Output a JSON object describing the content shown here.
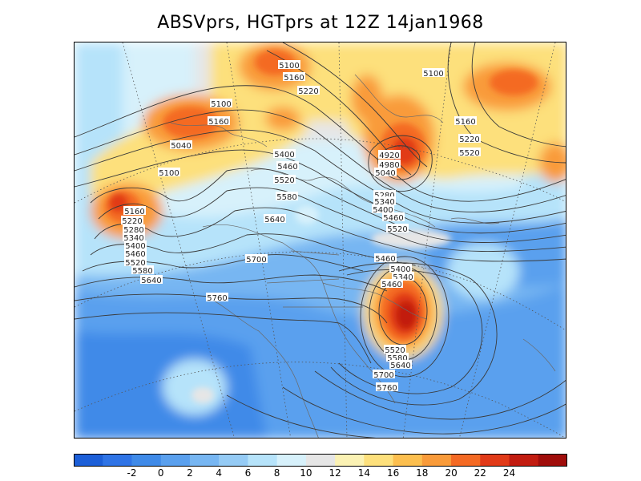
{
  "title": "ABSVprs, HGTprs at 12Z  14jan1968",
  "field": {
    "shaded_variable": "ABSVprs",
    "contour_variable": "HGTprs",
    "time": "12Z  14jan1968",
    "projection": "north polar stereographic (North America)"
  },
  "colorbar": {
    "colors": [
      "#1c5fd8",
      "#2f74e6",
      "#3f8ae8",
      "#5aa0ee",
      "#77b6f2",
      "#95cbf5",
      "#b6e3fa",
      "#d7f1fb",
      "#e6e6e6",
      "#fbf2b4",
      "#fde07c",
      "#fcbf4f",
      "#f99b3a",
      "#f46a24",
      "#e13a18",
      "#c21c10",
      "#a00d0b"
    ],
    "labels": [
      "-2",
      "0",
      "2",
      "4",
      "6",
      "8",
      "10",
      "12",
      "14",
      "16",
      "18",
      "20",
      "22",
      "24"
    ]
  },
  "contour_labels": [
    "5100",
    "5160",
    "5220",
    "5100",
    "5160",
    "5040",
    "5100",
    "5160",
    "5220",
    "5280",
    "5340",
    "5400",
    "5460",
    "5520",
    "5580",
    "5640",
    "5400",
    "5460",
    "5520",
    "5580",
    "5640",
    "5700",
    "5760",
    "4920",
    "4980",
    "5040",
    "5280",
    "5340",
    "5400",
    "5460",
    "5520",
    "5100",
    "5160",
    "5220",
    "5520",
    "5460",
    "5400",
    "5340",
    "5460",
    "5520",
    "5580",
    "5640",
    "5700",
    "5760"
  ]
}
